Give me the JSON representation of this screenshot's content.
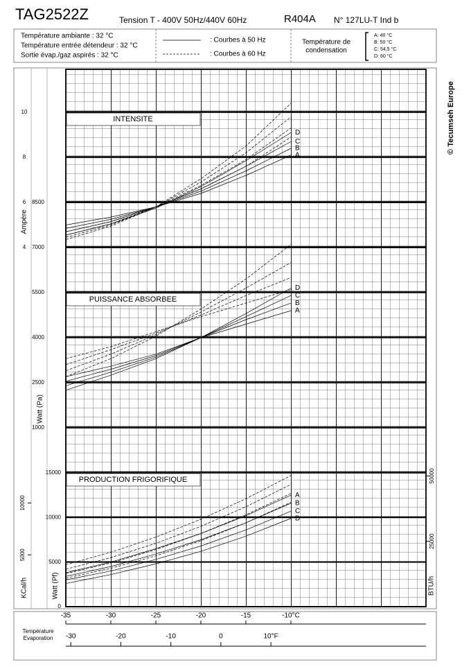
{
  "header": {
    "title": "TAG2522Z",
    "voltage": "Tension T - 400V 50Hz/440V 60Hz",
    "refrigerant": "R404A",
    "number": "N° 127LU-T Ind b",
    "conditions": [
      "Température ambiante : 32 °C",
      "Température entrée détendeur : 32 °C",
      "Sortie évap./gaz aspirés : 32 °C"
    ],
    "legend_50": ": Courbes à 50 Hz",
    "legend_60": ": Courbes à 60 Hz",
    "condensation_title": [
      "Température de",
      "condensation"
    ],
    "condensation": [
      "A: 40 °C",
      "B: 50 °C",
      "C: 54,5 °C",
      "D: 60 °C"
    ],
    "copyright": "© Tecumseh Europe"
  },
  "chart_data": [
    {
      "type": "line",
      "title": "INTENSITE",
      "ylabel": "Ampère",
      "x": [
        -35,
        -30,
        -25,
        -20,
        -15,
        -10
      ],
      "ylim": [
        4,
        10
      ],
      "yticks": [
        4,
        6,
        8,
        10
      ],
      "series": [
        {
          "name": "A",
          "color": "#000",
          "values": [
            5.0,
            5.35,
            5.8,
            6.4,
            7.2,
            8.1
          ]
        },
        {
          "name": "B",
          "color": "#000",
          "values": [
            4.85,
            5.25,
            5.8,
            6.5,
            7.4,
            8.4
          ]
        },
        {
          "name": "C",
          "color": "#000",
          "values": [
            4.7,
            5.15,
            5.8,
            6.6,
            7.6,
            8.7
          ]
        },
        {
          "name": "D",
          "color": "#000",
          "values": [
            4.55,
            5.05,
            5.75,
            6.7,
            7.85,
            9.1
          ]
        },
        {
          "color": "#000",
          "dashed": true,
          "values": [
            4.7,
            5.15,
            5.8,
            6.6,
            7.6,
            8.9
          ]
        },
        {
          "color": "#000",
          "dashed": true,
          "values": [
            4.55,
            5.05,
            5.8,
            6.75,
            7.9,
            9.3
          ]
        },
        {
          "color": "#000",
          "dashed": true,
          "values": [
            4.45,
            5.0,
            5.8,
            6.9,
            8.2,
            9.8
          ]
        },
        {
          "color": "#000",
          "dashed": true,
          "values": [
            4.35,
            4.95,
            5.8,
            7.05,
            8.5,
            10.4
          ]
        }
      ]
    },
    {
      "type": "line",
      "title": "PUISSANCE ABSORBEE",
      "ylabel": "Watt (Pa)",
      "x": [
        -35,
        -30,
        -25,
        -20,
        -15,
        -10
      ],
      "ylim": [
        1000,
        8500
      ],
      "yticks": [
        1000,
        2500,
        4000,
        5500,
        7000,
        8500
      ],
      "series": [
        {
          "name": "A",
          "color": "#000",
          "values": [
            2700,
            3050,
            3450,
            4000,
            4450,
            4900
          ]
        },
        {
          "name": "B",
          "color": "#000",
          "values": [
            2550,
            2950,
            3400,
            4000,
            4600,
            5150
          ]
        },
        {
          "name": "C",
          "color": "#000",
          "values": [
            2400,
            2850,
            3350,
            4000,
            4700,
            5400
          ]
        },
        {
          "name": "D",
          "color": "#000",
          "values": [
            2250,
            2750,
            3300,
            4000,
            4800,
            5650
          ]
        },
        {
          "color": "#000",
          "dashed": true,
          "values": [
            3300,
            3700,
            4200,
            4700,
            5150,
            5600
          ]
        },
        {
          "color": "#000",
          "dashed": true,
          "values": [
            3100,
            3600,
            4150,
            4750,
            5400,
            6000
          ]
        },
        {
          "color": "#000",
          "dashed": true,
          "values": [
            2900,
            3450,
            4100,
            4850,
            5650,
            6500
          ]
        },
        {
          "color": "#000",
          "dashed": true,
          "values": [
            2700,
            3300,
            4050,
            4950,
            5950,
            7100
          ]
        }
      ]
    },
    {
      "type": "line",
      "title": "PRODUCTION FRIGORIFIQUE",
      "ylabel": "Watt (Pf)",
      "y2label": "KCal/h",
      "y3label": "BTU/h",
      "x": [
        -35,
        -30,
        -25,
        -20,
        -15,
        -10
      ],
      "xlim": [
        -35,
        5
      ],
      "xticks": [
        -35,
        -30,
        -25,
        -20,
        -15,
        {
          "value": -10,
          "label": "-10°C"
        }
      ],
      "x2lim": [
        -31,
        41
      ],
      "x2ticks": [
        -30,
        -20,
        -10,
        0,
        {
          "value": 10,
          "label": "10°F"
        }
      ],
      "xlabel": [
        "Température",
        "Evaporation"
      ],
      "ylim": [
        0,
        15000
      ],
      "yticks": [
        0,
        5000,
        10000,
        15000
      ],
      "y2lim": [
        0,
        12900
      ],
      "y2ticks": [
        5000,
        10000
      ],
      "y3lim": [
        0,
        51180
      ],
      "y3ticks": [
        25000,
        50000
      ],
      "series": [
        {
          "name": "A",
          "color": "#000",
          "values": [
            3800,
            5000,
            6500,
            8200,
            10200,
            12500
          ]
        },
        {
          "name": "B",
          "color": "#000",
          "values": [
            3400,
            4500,
            5900,
            7500,
            9400,
            11600
          ]
        },
        {
          "name": "C",
          "color": "#000",
          "values": [
            3000,
            4000,
            5300,
            6800,
            8600,
            10700
          ]
        },
        {
          "name": "D",
          "color": "#000",
          "values": [
            2600,
            3600,
            4800,
            6200,
            7900,
            9900
          ]
        },
        {
          "color": "#000",
          "dashed": true,
          "values": [
            4700,
            6100,
            7800,
            9800,
            12100,
            14700
          ]
        },
        {
          "color": "#000",
          "dashed": true,
          "values": [
            4200,
            5500,
            7100,
            9000,
            11200,
            13700
          ]
        },
        {
          "color": "#000",
          "dashed": true,
          "values": [
            3700,
            4900,
            6400,
            8200,
            10300,
            12700
          ]
        },
        {
          "color": "#000",
          "dashed": true,
          "values": [
            3200,
            4300,
            5700,
            7400,
            9400,
            11700
          ]
        }
      ]
    }
  ]
}
